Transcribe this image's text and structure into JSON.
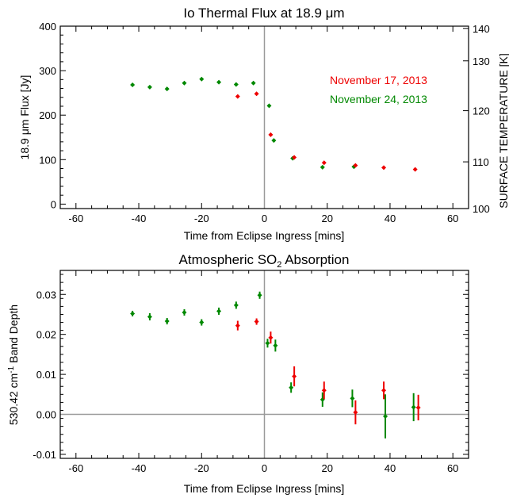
{
  "colors": {
    "nov17": "#ee0000",
    "nov24": "#008800",
    "axis": "#000000",
    "refline": "#999999"
  },
  "chart_data": [
    {
      "type": "scatter",
      "title_pre": "Io Thermal Flux at 18.9 ",
      "title_unit": "μm",
      "xlabel": "Time from Eclipse Ingress [mins]",
      "ylabel_pre": "18.9 ",
      "ylabel_unit": "μm",
      "ylabel_post": " Flux [Jy]",
      "y2label": "SURFACE TEMPERATURE [K]",
      "xlim": [
        -65,
        65
      ],
      "ylim": [
        -10,
        400
      ],
      "xticks": [
        -60,
        -40,
        -20,
        0,
        20,
        40,
        60
      ],
      "yticks": [
        0,
        100,
        200,
        300,
        400
      ],
      "y2ticks": [
        100,
        110,
        120,
        130,
        140
      ],
      "y2_positions": [
        -10,
        95,
        210,
        322,
        395
      ],
      "grid": false,
      "legend_position": "upper-right",
      "series": [
        {
          "name": "November 17, 2013",
          "color": "#ee0000",
          "x": [
            -8.5,
            -2.5,
            2,
            9.5,
            19,
            29,
            38,
            48
          ],
          "y": [
            242,
            248,
            156,
            105,
            93,
            87,
            82,
            78
          ]
        },
        {
          "name": "November 24, 2013",
          "color": "#008800",
          "x": [
            -42,
            -36.5,
            -31,
            -25.5,
            -20,
            -14.5,
            -9,
            -3.5,
            1.5,
            3,
            9,
            18.5,
            28.5
          ],
          "y": [
            268,
            263,
            259,
            272,
            281,
            274,
            269,
            272,
            221,
            143,
            103,
            83,
            84
          ]
        }
      ]
    },
    {
      "type": "scatter",
      "title_pre": "Atmospheric SO",
      "title_sub": "2",
      "title_post": " Absorption",
      "xlabel": "Time from Eclipse Ingress [mins]",
      "ylabel_pre": "530.42 cm",
      "ylabel_sup": "-1",
      "ylabel_post": " Band Depth",
      "xlim": [
        -65,
        65
      ],
      "ylim": [
        -0.011,
        0.036
      ],
      "xticks": [
        -60,
        -40,
        -20,
        0,
        20,
        40,
        60
      ],
      "yticks": [
        -0.01,
        0.0,
        0.01,
        0.02,
        0.03
      ],
      "ytick_labels": [
        "-0.01",
        "0.00",
        "0.01",
        "0.02",
        "0.03"
      ],
      "grid": false,
      "series": [
        {
          "name": "November 17, 2013",
          "color": "#ee0000",
          "x": [
            -8.5,
            -2.5,
            2,
            9.5,
            19,
            29,
            38,
            49
          ],
          "y": [
            0.0222,
            0.0232,
            0.0192,
            0.0095,
            0.006,
            0.0005,
            0.006,
            0.0017
          ],
          "err": [
            0.0012,
            0.0008,
            0.0015,
            0.0025,
            0.0022,
            0.003,
            0.0022,
            0.0032
          ]
        },
        {
          "name": "November 24, 2013",
          "color": "#008800",
          "x": [
            -42,
            -36.5,
            -31,
            -25.5,
            -20,
            -14.5,
            -9,
            -1.5,
            1,
            3.5,
            8.5,
            18.5,
            28,
            38.5,
            47.5
          ],
          "y": [
            0.0252,
            0.0244,
            0.0233,
            0.0255,
            0.023,
            0.0258,
            0.0273,
            0.0298,
            0.0178,
            0.0172,
            0.0067,
            0.0037,
            0.004,
            -0.0005,
            0.0018
          ],
          "err": [
            0.0007,
            0.0009,
            0.0008,
            0.0008,
            0.0008,
            0.0009,
            0.0009,
            0.0009,
            0.0011,
            0.0015,
            0.0013,
            0.0018,
            0.0022,
            0.0055,
            0.0035
          ]
        }
      ]
    }
  ]
}
